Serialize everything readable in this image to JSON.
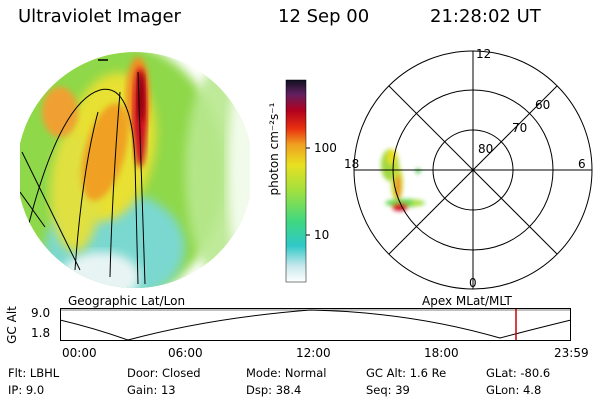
{
  "header": {
    "instrument": "Ultraviolet Imager",
    "date": "12 Sep 00",
    "time": "21:28:02 UT"
  },
  "colorbar": {
    "label": "photon cm⁻²s⁻¹",
    "ticks": [
      "100",
      "10"
    ]
  },
  "polar": {
    "mlt_labels": {
      "top": "12",
      "left": "18",
      "right": "6",
      "bottom": "0"
    },
    "lat_labels": [
      "60",
      "70",
      "80"
    ]
  },
  "panel_labels": {
    "left": "Geographic Lat/Lon",
    "right": "Apex MLat/MLT"
  },
  "altitude_plot": {
    "ylabel": "GC Alt",
    "yticks": [
      "9.0",
      "1.8"
    ],
    "xticks": [
      "00:00",
      "06:00",
      "12:00",
      "18:00",
      "23:59"
    ],
    "marker_color": "#cc0000"
  },
  "info": {
    "row1": [
      {
        "key": "Flt:",
        "value": "LBHL"
      },
      {
        "key": "Door:",
        "value": "Closed"
      },
      {
        "key": "Mode:",
        "value": "Normal"
      },
      {
        "key": "GC Alt:",
        "value": "1.6 Re"
      },
      {
        "key": "GLat:",
        "value": "-80.6"
      }
    ],
    "row2": [
      {
        "key": "IP:",
        "value": "9.0"
      },
      {
        "key": "Gain:",
        "value": "13"
      },
      {
        "key": "Dsp:",
        "value": "38.4"
      },
      {
        "key": "Seq:",
        "value": "39"
      },
      {
        "key": "GLon:",
        "value": "4.8"
      }
    ]
  }
}
